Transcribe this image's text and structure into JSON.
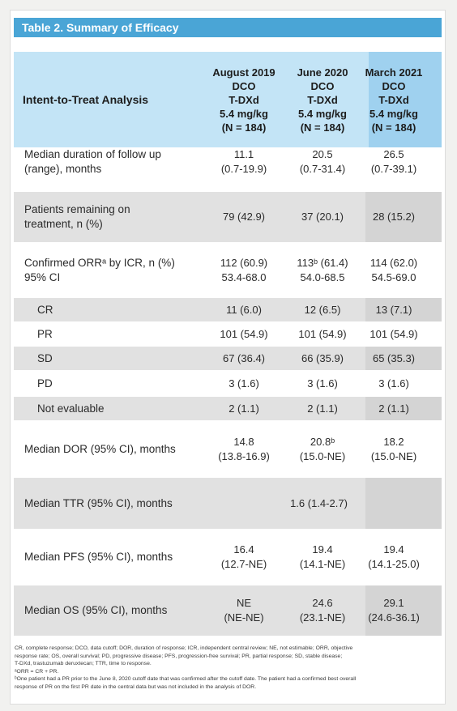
{
  "title": "Table 2. Summary of Efficacy",
  "header": {
    "row_label": "Intent-to-Treat Analysis",
    "columns": [
      [
        "August 2019",
        "DCO",
        "T-DXd",
        "5.4 mg/kg",
        "(N = 184)"
      ],
      [
        "June 2020",
        "DCO",
        "T-DXd",
        "5.4 mg/kg",
        "(N = 184)"
      ],
      [
        "March 2021",
        "DCO",
        "T-DXd",
        "5.4 mg/kg",
        "(N = 184)"
      ]
    ]
  },
  "rows": [
    {
      "label": [
        "Median duration of follow up",
        "(range), months"
      ],
      "values": [
        [
          "11.1",
          "(0.7-19.9)"
        ],
        [
          "20.5",
          "(0.7-31.4)"
        ],
        [
          "26.5",
          "(0.7-39.1)"
        ]
      ]
    },
    {
      "label": [
        "Patients remaining on",
        "treatment, n (%)"
      ],
      "values": [
        [
          "79 (42.9)"
        ],
        [
          "37 (20.1)"
        ],
        [
          "28 (15.2)"
        ]
      ]
    },
    {
      "label": [
        "Confirmed ORRᵃ by ICR, n (%)",
        "95% CI"
      ],
      "values": [
        [
          "112 (60.9)",
          "53.4-68.0"
        ],
        [
          "113ᵇ (61.4)",
          "54.0-68.5"
        ],
        [
          "114 (62.0)",
          "54.5-69.0"
        ]
      ]
    },
    {
      "label": [
        "CR"
      ],
      "values": [
        [
          "11 (6.0)"
        ],
        [
          "12 (6.5)"
        ],
        [
          "13 (7.1)"
        ]
      ]
    },
    {
      "label": [
        "PR"
      ],
      "values": [
        [
          "101 (54.9)"
        ],
        [
          "101 (54.9)"
        ],
        [
          "101 (54.9)"
        ]
      ]
    },
    {
      "label": [
        "SD"
      ],
      "values": [
        [
          "67 (36.4)"
        ],
        [
          "66 (35.9)"
        ],
        [
          "65 (35.3)"
        ]
      ]
    },
    {
      "label": [
        "PD"
      ],
      "values": [
        [
          "3 (1.6)"
        ],
        [
          "3 (1.6)"
        ],
        [
          "3 (1.6)"
        ]
      ]
    },
    {
      "label": [
        "Not evaluable"
      ],
      "values": [
        [
          "2 (1.1)"
        ],
        [
          "2 (1.1)"
        ],
        [
          "2 (1.1)"
        ]
      ]
    },
    {
      "label": [
        "Median DOR (95% CI), months"
      ],
      "values": [
        [
          "14.8",
          "(13.8-16.9)"
        ],
        [
          "20.8ᵇ",
          "(15.0-NE)"
        ],
        [
          "18.2",
          "(15.0-NE)"
        ]
      ]
    },
    {
      "label": [
        "Median TTR (95% CI), months"
      ],
      "merged": "1.6 (1.4-2.7)"
    },
    {
      "label": [
        "Median PFS (95% CI), months"
      ],
      "values": [
        [
          "16.4",
          "(12.7-NE)"
        ],
        [
          "19.4",
          "(14.1-NE)"
        ],
        [
          "19.4",
          "(14.1-25.0)"
        ]
      ]
    },
    {
      "label": [
        "Median OS (95% CI), months"
      ],
      "values": [
        [
          "NE",
          "(NE-NE)"
        ],
        [
          "24.6",
          "(23.1-NE)"
        ],
        [
          "29.1",
          "(24.6-36.1)"
        ]
      ]
    }
  ],
  "footnotes": [
    "CR, complete response; DCO, data cutoff; DOR, duration of response; ICR, independent central review; NE, not estimable; ORR, objective",
    "response rate; OS, overall survival; PD, progressive disease; PFS, progression-free survival; PR, partial response; SD, stable disease;",
    "T-DXd, trastuzumab deruxtecan; TTR, time to response.",
    "ᵃORR = CR + PR.",
    "ᵇOne patient had a PR prior to the June 8, 2020 cutoff date that was confirmed after the cutoff date. The patient had a confirmed best overall",
    "response of PR on the first PR date in the central data but was not included in the analysis of DOR."
  ],
  "colors": {
    "title_bar": "#4aa5d6",
    "header": "#c3e4f6",
    "header_highlight": "#9fd1ef",
    "row_shade": "#e1e1e1",
    "col_highlight": "#d4d4d4"
  }
}
